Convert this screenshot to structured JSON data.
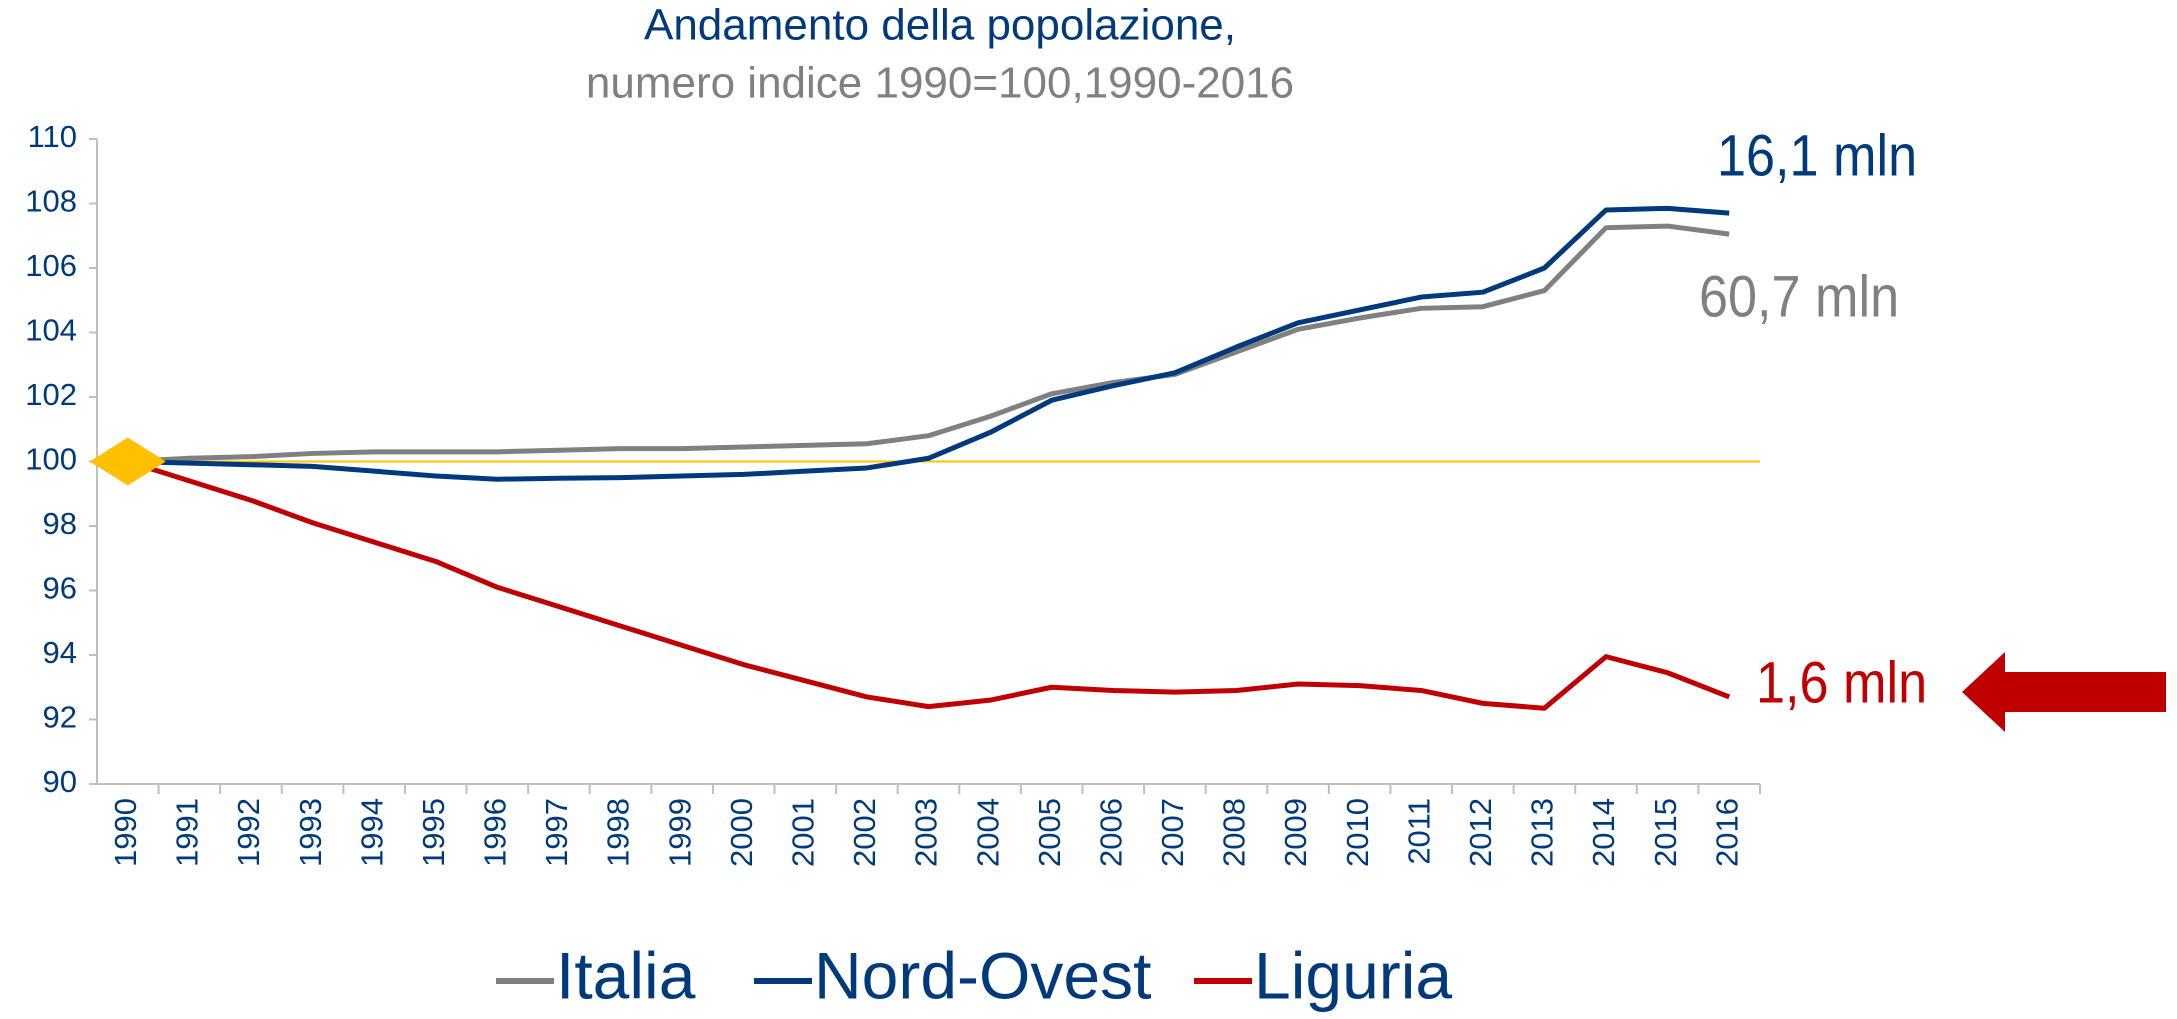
{
  "chart_data": {
    "type": "line",
    "title": "Andamento della popolazione,",
    "subtitle": "numero indice 1990=100,1990-2016",
    "categories": [
      "1990",
      "1991",
      "1992",
      "1993",
      "1994",
      "1995",
      "1996",
      "1997",
      "1998",
      "1999",
      "2000",
      "2001",
      "2002",
      "2003",
      "2004",
      "2005",
      "2006",
      "2007",
      "2008",
      "2009",
      "2010",
      "2011",
      "2012",
      "2013",
      "2014",
      "2015",
      "2016"
    ],
    "series": [
      {
        "name": "Italia",
        "color": "#808080",
        "values": [
          100,
          100.1,
          100.15,
          100.25,
          100.3,
          100.3,
          100.3,
          100.35,
          100.4,
          100.4,
          100.45,
          100.5,
          100.55,
          100.8,
          101.4,
          102.1,
          102.45,
          102.7,
          103.4,
          104.1,
          104.45,
          104.75,
          104.8,
          105.3,
          107.25,
          107.3,
          107.05
        ]
      },
      {
        "name": "Nord-Ovest",
        "color": "#003a7d",
        "values": [
          100,
          99.95,
          99.9,
          99.85,
          99.7,
          99.55,
          99.45,
          99.48,
          99.5,
          99.55,
          99.6,
          99.7,
          99.8,
          100.1,
          100.9,
          101.9,
          102.35,
          102.75,
          103.55,
          104.3,
          104.7,
          105.1,
          105.25,
          106.0,
          107.8,
          107.85,
          107.7
        ]
      },
      {
        "name": "Liguria",
        "color": "#c00000",
        "values": [
          100,
          99.4,
          98.8,
          98.1,
          97.5,
          96.9,
          96.1,
          95.5,
          94.9,
          94.3,
          93.7,
          93.2,
          92.7,
          92.4,
          92.6,
          93.0,
          92.9,
          92.85,
          92.9,
          93.1,
          93.05,
          92.9,
          92.5,
          92.35,
          93.95,
          93.45,
          92.7
        ]
      }
    ],
    "annotations": [
      {
        "text": "16,1 mln",
        "color": "#003a7d"
      },
      {
        "text": "60,7 mln",
        "color": "#808080"
      },
      {
        "text": "1,6 mln",
        "color": "#c00000"
      }
    ],
    "reference_line": {
      "value": 100,
      "color": "#ffc000"
    },
    "ylim": [
      90,
      110
    ],
    "yticks": [
      90,
      92,
      94,
      96,
      98,
      100,
      102,
      104,
      106,
      108,
      110
    ],
    "legend": "bottom"
  }
}
